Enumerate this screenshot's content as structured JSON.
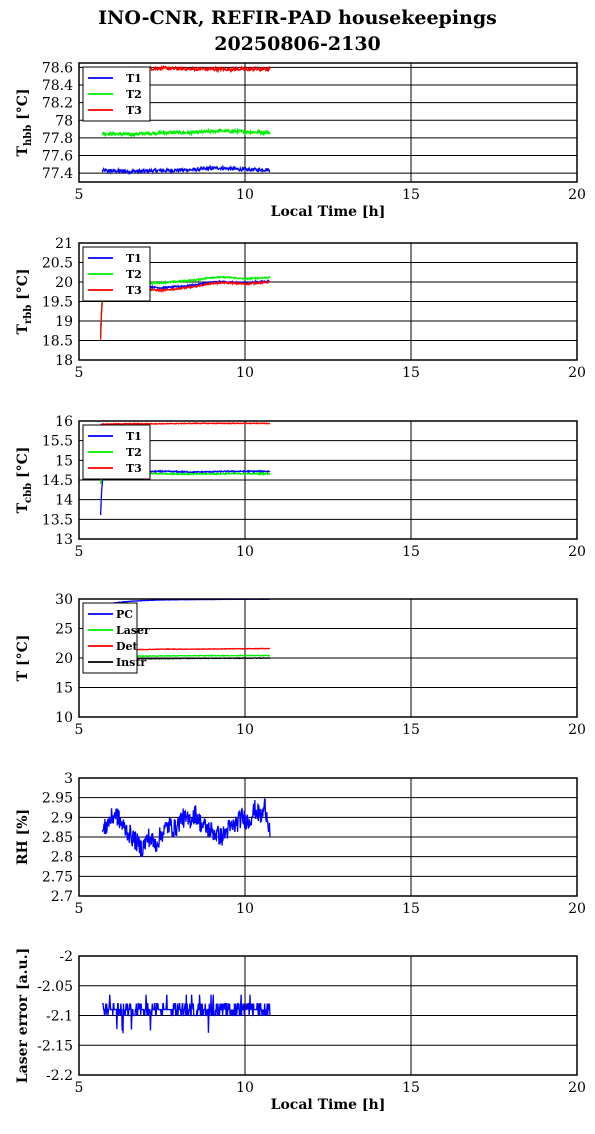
{
  "title_line1": "INO-CNR, REFIR-PAD housekeepings",
  "title_line2": "20250806-2130",
  "chart_data": [
    {
      "type": "line",
      "ylabel": "T",
      "ylabel_sub": "hbb",
      "ylabel_unit": "[°C]",
      "xlabel": "Local Time [h]",
      "xlim": [
        5,
        20
      ],
      "ylim": [
        77.3,
        78.65
      ],
      "xticks": [
        "5",
        "10",
        "15",
        "20"
      ],
      "yticks": [
        "77.4",
        "77.6",
        "77.8",
        "78",
        "78.2",
        "78.4",
        "78.6"
      ],
      "ytick_values": [
        77.4,
        77.6,
        77.8,
        78.0,
        78.2,
        78.4,
        78.6
      ],
      "grid": true,
      "legend": "top-left",
      "series": [
        {
          "name": "T1",
          "color": "#0000ff",
          "x": [
            5.7,
            6.5,
            7.5,
            8.5,
            9.2,
            10.0,
            10.75
          ],
          "values": [
            77.43,
            77.42,
            77.43,
            77.44,
            77.46,
            77.44,
            77.44
          ],
          "noise": 0.02
        },
        {
          "name": "T2",
          "color": "#00ee00",
          "x": [
            5.7,
            6.5,
            7.5,
            8.5,
            9.2,
            10.0,
            10.75
          ],
          "values": [
            77.85,
            77.84,
            77.86,
            77.86,
            77.88,
            77.87,
            77.86
          ],
          "noise": 0.02
        },
        {
          "name": "T3",
          "color": "#ff0000",
          "x": [
            5.7,
            6.5,
            7.5,
            8.5,
            9.2,
            10.0,
            10.75
          ],
          "values": [
            78.58,
            78.58,
            78.59,
            78.58,
            78.58,
            78.58,
            78.58
          ],
          "noise": 0.02
        }
      ]
    },
    {
      "type": "line",
      "ylabel": "T",
      "ylabel_sub": "rbb",
      "ylabel_unit": "[°C]",
      "xlabel": "",
      "xlim": [
        5,
        20
      ],
      "ylim": [
        18,
        21
      ],
      "xticks": [
        "5",
        "10",
        "15",
        "20"
      ],
      "yticks": [
        "18",
        "18.5",
        "19",
        "19.5",
        "20",
        "20.5",
        "21"
      ],
      "ytick_values": [
        18,
        18.5,
        19,
        19.5,
        20,
        20.5,
        21
      ],
      "grid": true,
      "legend": "top-left",
      "series": [
        {
          "name": "T1",
          "color": "#0000ff",
          "x": [
            5.65,
            5.68,
            5.72,
            5.8,
            6.5,
            7.5,
            8.5,
            9.0,
            9.5,
            10.0,
            10.75
          ],
          "values": [
            18.6,
            19.3,
            19.7,
            19.9,
            19.92,
            19.85,
            19.92,
            20.0,
            20.0,
            19.98,
            20.02
          ],
          "noise": 0.02
        },
        {
          "name": "T2",
          "color": "#00ee00",
          "x": [
            5.65,
            5.68,
            5.72,
            5.8,
            6.5,
            7.5,
            8.5,
            9.0,
            9.5,
            10.0,
            10.75
          ],
          "values": [
            18.6,
            19.35,
            19.75,
            19.95,
            19.97,
            19.98,
            20.05,
            20.12,
            20.12,
            20.08,
            20.12
          ],
          "noise": 0.02
        },
        {
          "name": "T3",
          "color": "#ff0000",
          "x": [
            5.65,
            5.68,
            5.72,
            5.8,
            6.5,
            7.5,
            8.5,
            9.0,
            9.5,
            10.0,
            10.75
          ],
          "values": [
            18.5,
            19.3,
            19.6,
            19.85,
            19.85,
            19.78,
            19.88,
            19.97,
            19.98,
            19.95,
            20.0
          ],
          "noise": 0.02
        }
      ]
    },
    {
      "type": "line",
      "ylabel": "T",
      "ylabel_sub": "cbb",
      "ylabel_unit": "[°C]",
      "xlabel": "",
      "xlim": [
        5,
        20
      ],
      "ylim": [
        13,
        16
      ],
      "xticks": [
        "5",
        "10",
        "15",
        "20"
      ],
      "yticks": [
        "13",
        "13.5",
        "14",
        "14.5",
        "15",
        "15.5",
        "16"
      ],
      "ytick_values": [
        13,
        13.5,
        14,
        14.5,
        15,
        15.5,
        16
      ],
      "grid": true,
      "legend": "top-left",
      "series": [
        {
          "name": "T1",
          "color": "#0000ff",
          "x": [
            5.65,
            5.68,
            5.72,
            5.8,
            6.5,
            7.5,
            8.5,
            9.5,
            10.75
          ],
          "values": [
            13.6,
            14.2,
            14.6,
            14.7,
            14.7,
            14.72,
            14.7,
            14.72,
            14.72
          ],
          "noise": 0.015
        },
        {
          "name": "T2",
          "color": "#00ee00",
          "x": [
            5.65,
            5.68,
            5.72,
            5.8,
            6.5,
            7.5,
            8.5,
            9.5,
            10.75
          ],
          "values": [
            14.4,
            14.6,
            14.65,
            14.67,
            14.67,
            14.66,
            14.65,
            14.66,
            14.66
          ],
          "noise": 0.015
        },
        {
          "name": "T3",
          "color": "#ff0000",
          "x": [
            5.65,
            5.7,
            6.5,
            7.5,
            8.5,
            9.5,
            10.75
          ],
          "values": [
            15.9,
            15.92,
            15.93,
            15.93,
            15.94,
            15.94,
            15.94
          ],
          "noise": 0.01
        }
      ]
    },
    {
      "type": "line",
      "ylabel": "T",
      "ylabel_sub": "",
      "ylabel_unit": "[°C]",
      "xlabel": "",
      "xlim": [
        5,
        20
      ],
      "ylim": [
        10,
        30
      ],
      "xticks": [
        "5",
        "10",
        "15",
        "20"
      ],
      "yticks": [
        "10",
        "15",
        "20",
        "25",
        "30"
      ],
      "ytick_values": [
        10,
        15,
        20,
        25,
        30
      ],
      "grid": true,
      "legend": "top-left",
      "series": [
        {
          "name": "PC",
          "color": "#0000ff",
          "x": [
            5.7,
            6.0,
            6.5,
            7.0,
            7.5,
            8.5,
            9.5,
            10.75
          ],
          "values": [
            28.9,
            29.3,
            29.6,
            29.75,
            29.85,
            29.9,
            29.95,
            29.97
          ],
          "noise": 0.03
        },
        {
          "name": "Laser",
          "color": "#00ee00",
          "x": [
            5.7,
            6.5,
            7.5,
            8.5,
            9.5,
            10.75
          ],
          "values": [
            20.2,
            20.3,
            20.35,
            20.4,
            20.4,
            20.42
          ],
          "noise": 0.05
        },
        {
          "name": "Det",
          "color": "#ff0000",
          "x": [
            5.7,
            6.5,
            7.5,
            8.5,
            9.5,
            10.75
          ],
          "values": [
            21.3,
            21.4,
            21.5,
            21.5,
            21.55,
            21.6
          ],
          "noise": 0.05
        },
        {
          "name": "Instr",
          "color": "#000000",
          "x": [
            5.7,
            6.5,
            7.5,
            8.5,
            9.5,
            10.75
          ],
          "values": [
            19.8,
            19.85,
            19.9,
            19.95,
            19.95,
            20.0
          ],
          "noise": 0.05
        }
      ]
    },
    {
      "type": "line",
      "ylabel": "RH [%]",
      "ylabel_sub": "",
      "ylabel_unit": "",
      "xlabel": "",
      "xlim": [
        5,
        20
      ],
      "ylim": [
        2.7,
        3.0
      ],
      "xticks": [
        "5",
        "10",
        "15",
        "20"
      ],
      "yticks": [
        "2.7",
        "2.75",
        "2.8",
        "2.85",
        "2.9",
        "2.95",
        "3"
      ],
      "ytick_values": [
        2.7,
        2.75,
        2.8,
        2.85,
        2.9,
        2.95,
        3.0
      ],
      "grid": true,
      "legend": "none",
      "series": [
        {
          "name": "",
          "color": "#0000ff",
          "x": [
            5.7,
            5.9,
            6.1,
            6.3,
            6.5,
            6.7,
            6.9,
            7.1,
            7.3,
            7.5,
            7.7,
            7.9,
            8.1,
            8.3,
            8.5,
            8.7,
            8.9,
            9.1,
            9.3,
            9.5,
            9.7,
            9.9,
            10.1,
            10.3,
            10.5,
            10.6,
            10.75
          ],
          "values": [
            2.86,
            2.89,
            2.91,
            2.88,
            2.86,
            2.84,
            2.82,
            2.85,
            2.83,
            2.86,
            2.88,
            2.87,
            2.9,
            2.89,
            2.91,
            2.88,
            2.87,
            2.86,
            2.85,
            2.87,
            2.88,
            2.9,
            2.89,
            2.92,
            2.9,
            2.93,
            2.87
          ],
          "noise": 0.025
        }
      ]
    },
    {
      "type": "line",
      "ylabel": "Laser error [a.u.]",
      "ylabel_sub": "",
      "ylabel_unit": "",
      "xlabel": "Local Time [h]",
      "xlim": [
        5,
        20
      ],
      "ylim": [
        -2.2,
        -2.0
      ],
      "xticks": [
        "5",
        "10",
        "15",
        "20"
      ],
      "yticks": [
        "-2.2",
        "-2.15",
        "-2.1",
        "-2.05",
        "-2"
      ],
      "ytick_values": [
        -2.2,
        -2.15,
        -2.1,
        -2.05,
        -2.0
      ],
      "grid": true,
      "legend": "none",
      "series": [
        {
          "name": "",
          "color": "#0000ff",
          "x": [
            5.7,
            6.0,
            6.5,
            7.0,
            7.5,
            8.0,
            8.5,
            9.0,
            9.5,
            10.0,
            10.5,
            10.75
          ],
          "values": [
            -2.09,
            -2.09,
            -2.09,
            -2.09,
            -2.09,
            -2.09,
            -2.09,
            -2.09,
            -2.09,
            -2.09,
            -2.09,
            -2.09
          ],
          "noise": 0.01,
          "quantized": [
            -2.08,
            -2.09,
            -2.1
          ]
        }
      ]
    }
  ]
}
